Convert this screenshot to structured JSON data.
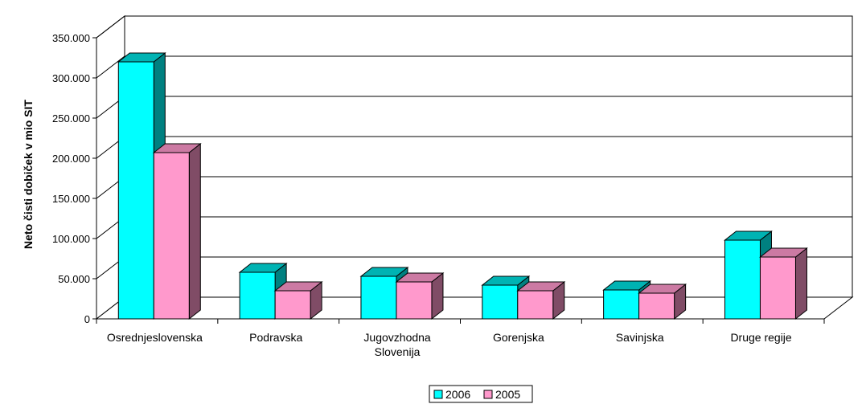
{
  "chart_data": {
    "type": "bar",
    "title": "",
    "xlabel": "",
    "ylabel": "Neto čisti dobiček v mio SIT",
    "ylim": [
      0,
      350000
    ],
    "yticks": [
      0,
      50000,
      100000,
      150000,
      200000,
      250000,
      300000,
      350000
    ],
    "ytick_labels": [
      "0",
      "50.000",
      "100.000",
      "150.000",
      "200.000",
      "250.000",
      "300.000",
      "350.000"
    ],
    "categories": [
      [
        "Osrednjeslovenska"
      ],
      [
        "Podravska"
      ],
      [
        "Jugovzhodna",
        "Slovenija"
      ],
      [
        "Gorenjska"
      ],
      [
        "Savinjska"
      ],
      [
        "Druge regije"
      ]
    ],
    "series": [
      {
        "name": "2006",
        "color": "#00FFFF",
        "dark": "#008080",
        "top": "#00B3B3",
        "values": [
          320000,
          58000,
          53000,
          42000,
          36000,
          98000
        ]
      },
      {
        "name": "2005",
        "color": "#FF99CC",
        "dark": "#804C66",
        "top": "#CC7AA3",
        "values": [
          207000,
          35000,
          46000,
          35000,
          32000,
          77000
        ]
      }
    ],
    "grid": true,
    "legend_position": "bottom",
    "style": "3d-clustered-column"
  }
}
